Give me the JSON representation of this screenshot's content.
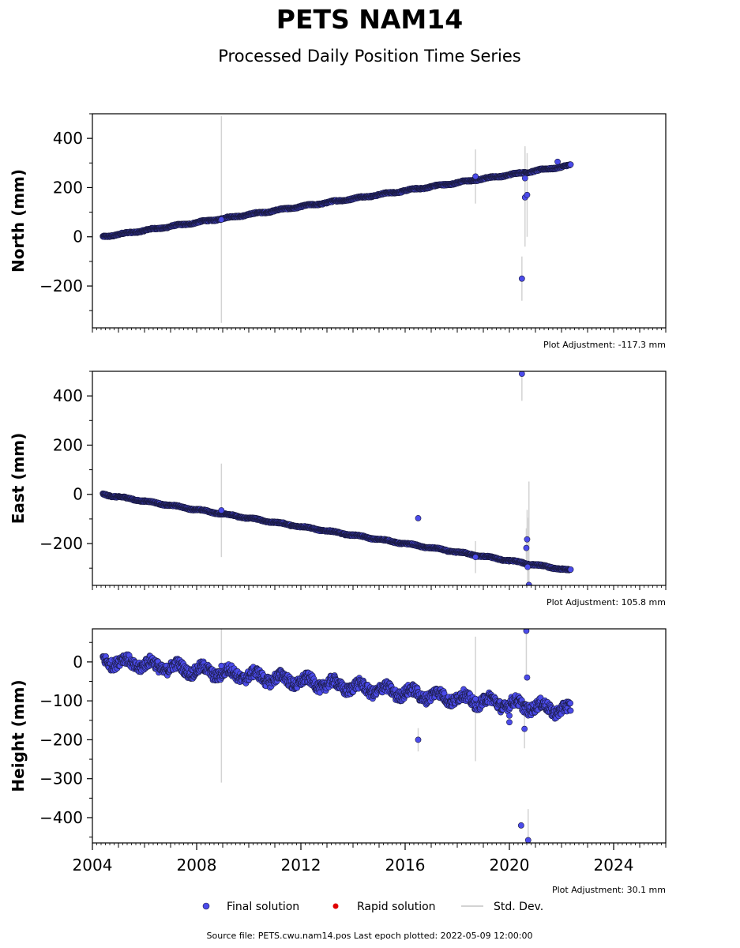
{
  "title": "PETS NAM14",
  "subtitle": "Processed Daily Position Time Series",
  "source_note": "Source file: PETS.cwu.nam14.pos  Last epoch plotted: 2022-05-09 12:00:00",
  "legend": {
    "final": "Final solution",
    "rapid": "Rapid solution",
    "std": "Std. Dev."
  },
  "colors": {
    "final_fill": "#4b4bea",
    "final_edge": "#1a1a40",
    "rapid": "#e00000",
    "std": "#d3d3d3"
  },
  "chart_data": [
    {
      "type": "scatter",
      "ylabel": "North (mm)",
      "adjustment": "Plot Adjustment: -117.3 mm",
      "xlim": [
        2004.0,
        2026.0
      ],
      "ylim": [
        -370,
        500
      ],
      "yticks": [
        -200,
        0,
        200,
        400
      ],
      "trend": {
        "x0": 2004.4,
        "y0": 0,
        "x1": 2022.35,
        "y1": 290,
        "scatter": 3
      },
      "outliers": [
        {
          "x": 2020.48,
          "y": -170,
          "err": 90
        },
        {
          "x": 2020.6,
          "y": 160,
          "err": 200
        },
        {
          "x": 2020.68,
          "y": 170,
          "err": 170
        },
        {
          "x": 2020.6,
          "y": 238,
          "err": 130
        },
        {
          "x": 2018.7,
          "y": 245,
          "err": 110
        },
        {
          "x": 2008.95,
          "y": 70,
          "err": 420
        },
        {
          "x": 2021.85,
          "y": 305,
          "err": 0
        }
      ]
    },
    {
      "type": "scatter",
      "ylabel": "East (mm)",
      "adjustment": "Plot Adjustment: 105.8 mm",
      "xlim": [
        2004.0,
        2026.0
      ],
      "ylim": [
        -370,
        500
      ],
      "yticks": [
        -200,
        0,
        200,
        400
      ],
      "trend": {
        "x0": 2004.4,
        "y0": 0,
        "x1": 2022.35,
        "y1": -310,
        "scatter": 3
      },
      "outliers": [
        {
          "x": 2020.48,
          "y": 490,
          "err": 110
        },
        {
          "x": 2016.5,
          "y": -97,
          "err": 0
        },
        {
          "x": 2020.68,
          "y": -183,
          "err": 120
        },
        {
          "x": 2020.65,
          "y": -218,
          "err": 80
        },
        {
          "x": 2020.7,
          "y": -295,
          "err": 200
        },
        {
          "x": 2020.75,
          "y": -368,
          "err": 420
        },
        {
          "x": 2018.7,
          "y": -255,
          "err": 65
        },
        {
          "x": 2008.95,
          "y": -65,
          "err": 190
        }
      ]
    },
    {
      "type": "scatter",
      "ylabel": "Height (mm)",
      "adjustment": "Plot Adjustment: 30.1 mm",
      "xlim": [
        2004.0,
        2026.0
      ],
      "ylim": [
        -465,
        85
      ],
      "yticks": [
        -400,
        -300,
        -200,
        -100,
        0
      ],
      "xticks": [
        2004,
        2008,
        2012,
        2016,
        2020,
        2024
      ],
      "trend": {
        "x0": 2004.4,
        "y0": 5,
        "x1": 2022.35,
        "y1": -125,
        "scatter": 14
      },
      "outliers": [
        {
          "x": 2016.5,
          "y": -200,
          "err": 30
        },
        {
          "x": 2020.45,
          "y": -420,
          "err": 0
        },
        {
          "x": 2020.72,
          "y": -458,
          "err": 80
        },
        {
          "x": 2020.65,
          "y": 80,
          "err": 120
        },
        {
          "x": 2020.68,
          "y": -40,
          "err": 0
        },
        {
          "x": 2020.58,
          "y": -172,
          "err": 50
        },
        {
          "x": 2020.0,
          "y": -155,
          "err": 0
        },
        {
          "x": 2020.0,
          "y": -138,
          "err": 0
        },
        {
          "x": 2018.7,
          "y": -95,
          "err": 160
        },
        {
          "x": 2008.95,
          "y": -10,
          "err": 300
        }
      ]
    }
  ]
}
